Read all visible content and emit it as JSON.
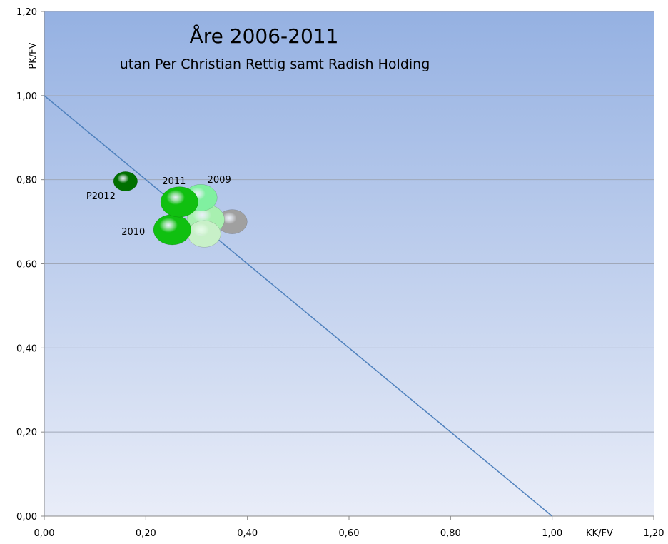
{
  "chart_data": {
    "type": "bubble",
    "title": "Åre 2006-2011",
    "subtitle": "utan Per Christian Rettig samt Radish Holding",
    "x_label": "KK/FV",
    "y_label": "PK/FV",
    "xlim": [
      0,
      1.2
    ],
    "ylim": [
      0,
      1.2
    ],
    "xticks": [
      {
        "value": 0,
        "label": "0,00"
      },
      {
        "value": 0.2,
        "label": "0,20"
      },
      {
        "value": 0.4,
        "label": "0,40"
      },
      {
        "value": 0.6,
        "label": "0,60"
      },
      {
        "value": 0.8,
        "label": "0,80"
      },
      {
        "value": 1,
        "label": "1,00"
      },
      {
        "value": 1.2,
        "label": "1,20"
      }
    ],
    "yticks": [
      {
        "value": 0,
        "label": "0,00"
      },
      {
        "value": 0.2,
        "label": "0,20"
      },
      {
        "value": 0.4,
        "label": "0,40"
      },
      {
        "value": 0.6,
        "label": "0,60"
      },
      {
        "value": 0.8,
        "label": "0,80"
      },
      {
        "value": 1,
        "label": "1,00"
      },
      {
        "value": 1.2,
        "label": "1,20"
      }
    ],
    "grid": true,
    "reference_line": {
      "x": [
        0,
        1
      ],
      "y": [
        1,
        0
      ],
      "color": "#4f81bd"
    },
    "points": {
      "labels": [
        null,
        null,
        null,
        "2009",
        "2010",
        "2011",
        "P2012"
      ],
      "x": [
        0.37,
        0.318,
        0.315,
        0.308,
        0.252,
        0.266,
        0.16
      ],
      "y": [
        0.7,
        0.705,
        0.671,
        0.757,
        0.681,
        0.747,
        0.796
      ],
      "sizes": [
        400,
        625,
        484,
        484,
        625,
        625,
        256
      ],
      "colors": [
        "#a0a0a0",
        "#a8f0b0",
        "#c8f0c8",
        "#80f0a0",
        "#10c010",
        "#10c010",
        "#007000"
      ]
    }
  }
}
